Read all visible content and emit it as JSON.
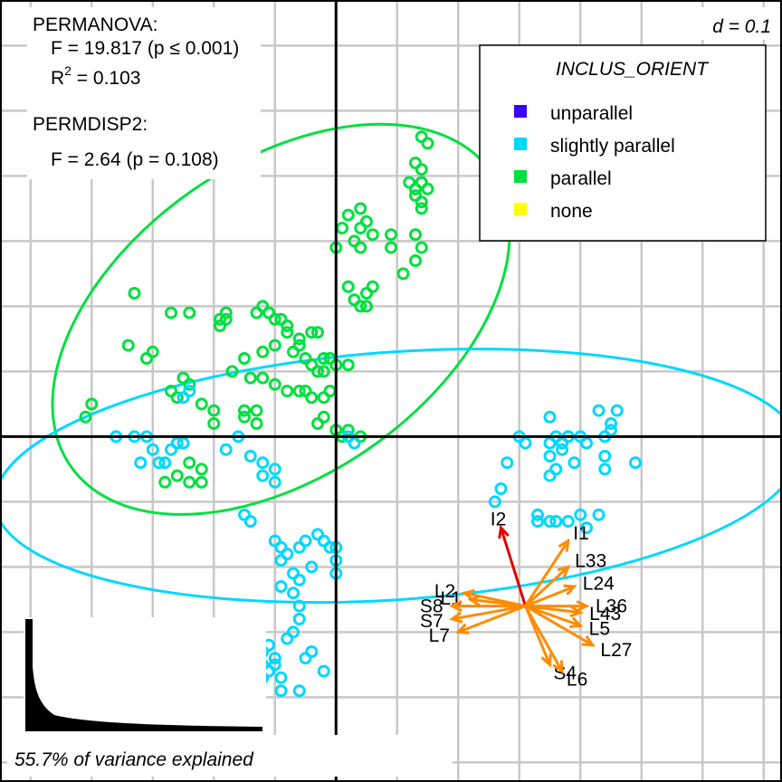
{
  "chart_data": {
    "type": "scatter",
    "title": "",
    "scale_label": "d = 0.1",
    "xlim": [
      -0.55,
      0.73
    ],
    "ylim": [
      -0.53,
      0.67
    ],
    "grid": true,
    "legend": {
      "title": "INCLUS_ORIENT",
      "placement": "top-right",
      "entries": [
        {
          "label": "unparallel",
          "color": "#3B00FF"
        },
        {
          "label": "slightly parallel",
          "color": "#00D8FF"
        },
        {
          "label": "parallel",
          "color": "#00E040"
        },
        {
          "label": "none",
          "color": "#FFFF00"
        }
      ]
    },
    "stats": {
      "permanova_title": "PERMANOVA:",
      "permanova_f": "F = 19.817 (p ≤ 0.001)",
      "permanova_r2_prefix": "R",
      "permanova_r2_sup": "2",
      "permanova_r2_suffix": " = 0.103",
      "permdisp_title": "PERMDISP2:",
      "permdisp_f": "F = 2.64 (p = 0.108)"
    },
    "variance_label": "55.7% of variance explained",
    "series": [
      {
        "name": "parallel",
        "color": "#00E040",
        "points": [
          [
            0.14,
            0.46
          ],
          [
            0.15,
            0.45
          ],
          [
            0.13,
            0.42
          ],
          [
            0.14,
            0.41
          ],
          [
            0.13,
            0.38
          ],
          [
            0.14,
            0.39
          ],
          [
            0.12,
            0.39
          ],
          [
            0.13,
            0.38
          ],
          [
            0.14,
            0.39
          ],
          [
            0.15,
            0.38
          ],
          [
            0.14,
            0.36
          ],
          [
            0.13,
            0.37
          ],
          [
            0.14,
            0.35
          ],
          [
            0.04,
            0.35
          ],
          [
            0.02,
            0.34
          ],
          [
            0.05,
            0.33
          ],
          [
            0.04,
            0.32
          ],
          [
            0.01,
            0.32
          ],
          [
            0.06,
            0.31
          ],
          [
            0.03,
            0.3
          ],
          [
            0.09,
            0.31
          ],
          [
            0.13,
            0.31
          ],
          [
            0.14,
            0.29
          ],
          [
            0.0,
            0.29
          ],
          [
            0.04,
            0.29
          ],
          [
            0.09,
            0.29
          ],
          [
            0.13,
            0.27
          ],
          [
            0.11,
            0.25
          ],
          [
            0.06,
            0.23
          ],
          [
            0.02,
            0.23
          ],
          [
            0.05,
            0.22
          ],
          [
            0.03,
            0.21
          ],
          [
            0.04,
            0.2
          ],
          [
            0.05,
            0.2
          ],
          [
            -0.33,
            0.22
          ],
          [
            -0.27,
            0.19
          ],
          [
            -0.24,
            0.19
          ],
          [
            -0.19,
            0.18
          ],
          [
            -0.18,
            0.19
          ],
          [
            -0.18,
            0.18
          ],
          [
            -0.19,
            0.17
          ],
          [
            -0.12,
            0.2
          ],
          [
            -0.13,
            0.19
          ],
          [
            -0.11,
            0.19
          ],
          [
            -0.1,
            0.18
          ],
          [
            -0.09,
            0.18
          ],
          [
            -0.08,
            0.17
          ],
          [
            -0.08,
            0.16
          ],
          [
            -0.06,
            0.15
          ],
          [
            -0.04,
            0.16
          ],
          [
            -0.03,
            0.16
          ],
          [
            -0.06,
            0.14
          ],
          [
            -0.07,
            0.13
          ],
          [
            -0.05,
            0.12
          ],
          [
            -0.04,
            0.11
          ],
          [
            -0.02,
            0.12
          ],
          [
            -0.01,
            0.12
          ],
          [
            0.0,
            0.11
          ],
          [
            0.02,
            0.11
          ],
          [
            -0.03,
            0.1
          ],
          [
            -0.02,
            0.1
          ],
          [
            -0.1,
            0.14
          ],
          [
            -0.12,
            0.13
          ],
          [
            -0.15,
            0.12
          ],
          [
            -0.17,
            0.1
          ],
          [
            -0.14,
            0.09
          ],
          [
            -0.12,
            0.09
          ],
          [
            -0.1,
            0.08
          ],
          [
            -0.08,
            0.07
          ],
          [
            -0.06,
            0.07
          ],
          [
            -0.05,
            0.07
          ],
          [
            -0.04,
            0.06
          ],
          [
            -0.02,
            0.06
          ],
          [
            -0.01,
            0.07
          ],
          [
            -0.34,
            0.14
          ],
          [
            -0.3,
            0.13
          ],
          [
            -0.31,
            0.12
          ],
          [
            -0.25,
            0.09
          ],
          [
            -0.24,
            0.08
          ],
          [
            -0.27,
            0.07
          ],
          [
            -0.26,
            0.06
          ],
          [
            -0.22,
            0.05
          ],
          [
            -0.2,
            0.04
          ],
          [
            -0.2,
            0.02
          ],
          [
            -0.15,
            0.03
          ],
          [
            -0.13,
            0.02
          ],
          [
            -0.13,
            0.04
          ],
          [
            -0.15,
            0.04
          ],
          [
            -0.4,
            0.05
          ],
          [
            -0.41,
            0.03
          ],
          [
            -0.02,
            0.03
          ],
          [
            -0.03,
            0.02
          ],
          [
            0.0,
            0.01
          ],
          [
            0.01,
            0.0
          ],
          [
            0.02,
            0.01
          ],
          [
            0.04,
            0.0
          ],
          [
            -0.24,
            -0.04
          ],
          [
            -0.22,
            -0.05
          ],
          [
            -0.26,
            -0.06
          ],
          [
            -0.24,
            -0.07
          ],
          [
            -0.22,
            -0.07
          ],
          [
            -0.28,
            -0.07
          ]
        ]
      },
      {
        "name": "slightly parallel",
        "color": "#00D8FF",
        "points": [
          [
            -0.24,
            0.07
          ],
          [
            -0.25,
            0.06
          ],
          [
            -0.36,
            0.0
          ],
          [
            -0.33,
            0.0
          ],
          [
            -0.31,
            0.0
          ],
          [
            -0.26,
            -0.01
          ],
          [
            -0.25,
            -0.01
          ],
          [
            -0.3,
            -0.02
          ],
          [
            -0.27,
            -0.02
          ],
          [
            -0.32,
            -0.04
          ],
          [
            -0.29,
            -0.04
          ],
          [
            -0.28,
            -0.04
          ],
          [
            -0.16,
            0.0
          ],
          [
            -0.18,
            -0.02
          ],
          [
            -0.14,
            -0.03
          ],
          [
            -0.12,
            -0.04
          ],
          [
            -0.1,
            -0.05
          ],
          [
            -0.12,
            -0.06
          ],
          [
            -0.1,
            -0.07
          ],
          [
            0.02,
            0.0
          ],
          [
            0.03,
            -0.01
          ],
          [
            -0.14,
            -0.13
          ],
          [
            -0.15,
            -0.12
          ],
          [
            -0.05,
            -0.16
          ],
          [
            -0.03,
            -0.15
          ],
          [
            -0.02,
            -0.16
          ],
          [
            -0.01,
            -0.17
          ],
          [
            0.0,
            -0.17
          ],
          [
            -0.1,
            -0.16
          ],
          [
            -0.09,
            -0.17
          ],
          [
            -0.08,
            -0.18
          ],
          [
            -0.06,
            -0.17
          ],
          [
            -0.09,
            -0.19
          ],
          [
            -0.07,
            -0.21
          ],
          [
            -0.06,
            -0.22
          ],
          [
            -0.04,
            -0.2
          ],
          [
            0.0,
            -0.19
          ],
          [
            0.0,
            -0.21
          ],
          [
            -0.09,
            -0.23
          ],
          [
            -0.07,
            -0.24
          ],
          [
            -0.06,
            -0.26
          ],
          [
            -0.06,
            -0.28
          ],
          [
            -0.07,
            -0.3
          ],
          [
            -0.08,
            -0.31
          ],
          [
            -0.11,
            -0.32
          ],
          [
            -0.12,
            -0.33
          ],
          [
            -0.1,
            -0.34
          ],
          [
            -0.1,
            -0.35
          ],
          [
            -0.11,
            -0.36
          ],
          [
            -0.12,
            -0.35
          ],
          [
            -0.12,
            -0.37
          ],
          [
            -0.09,
            -0.37
          ],
          [
            -0.09,
            -0.39
          ],
          [
            -0.06,
            -0.39
          ],
          [
            -0.05,
            -0.34
          ],
          [
            -0.04,
            -0.33
          ],
          [
            -0.02,
            -0.36
          ],
          [
            -0.14,
            -0.32
          ],
          [
            -0.15,
            -0.34
          ],
          [
            -0.14,
            -0.38
          ],
          [
            -0.13,
            -0.4
          ],
          [
            0.35,
            0.03
          ],
          [
            0.38,
            0.0
          ],
          [
            0.36,
            0.0
          ],
          [
            0.35,
            -0.01
          ],
          [
            0.35,
            -0.03
          ],
          [
            0.3,
            0.0
          ],
          [
            0.31,
            -0.01
          ],
          [
            0.28,
            -0.04
          ],
          [
            0.27,
            -0.08
          ],
          [
            0.26,
            -0.1
          ],
          [
            0.35,
            -0.06
          ],
          [
            0.33,
            -0.13
          ],
          [
            0.36,
            -0.13
          ],
          [
            0.36,
            -0.05
          ],
          [
            0.39,
            -0.04
          ],
          [
            0.35,
            -0.13
          ],
          [
            0.33,
            -0.12
          ],
          [
            0.38,
            -0.13
          ],
          [
            0.41,
            -0.14
          ],
          [
            0.43,
            -0.12
          ],
          [
            0.4,
            -0.12
          ],
          [
            0.37,
            -0.02
          ],
          [
            0.38,
            0.0
          ],
          [
            0.4,
            0.0
          ],
          [
            0.44,
            0.0
          ],
          [
            0.45,
            0.01
          ],
          [
            0.46,
            0.04
          ],
          [
            0.45,
            0.02
          ],
          [
            0.44,
            -0.05
          ],
          [
            0.44,
            -0.03
          ],
          [
            0.49,
            -0.04
          ],
          [
            0.37,
            -0.01
          ],
          [
            0.41,
            -0.01
          ],
          [
            0.43,
            0.04
          ]
        ]
      }
    ],
    "ellipses": [
      {
        "name": "parallel",
        "color": "#00E040",
        "cx": -0.09,
        "cy": 0.18,
        "rx": 0.42,
        "ry": 0.24,
        "angle_deg": 35
      },
      {
        "name": "slightly parallel",
        "color": "#00D8FF",
        "cx": 0.1,
        "cy": -0.06,
        "rx": 0.66,
        "ry": 0.19,
        "angle_deg": 4
      }
    ],
    "biplot_vectors": {
      "origin": [
        0.31,
        -0.26
      ],
      "arrows": [
        {
          "label": "I2",
          "color": "#E00000",
          "x": 0.27,
          "y": -0.14
        },
        {
          "label": "I1",
          "color": "#FF8C00",
          "x": 0.38,
          "y": -0.16
        },
        {
          "label": "L33",
          "color": "#FF8C00",
          "x": 0.38,
          "y": -0.2
        },
        {
          "label": "L24",
          "color": "#FF8C00",
          "x": 0.39,
          "y": -0.23
        },
        {
          "label": "L36",
          "color": "#FF8C00",
          "x": 0.41,
          "y": -0.26
        },
        {
          "label": "L43",
          "color": "#FF8C00",
          "x": 0.4,
          "y": -0.27
        },
        {
          "label": "L5",
          "color": "#FF8C00",
          "x": 0.4,
          "y": -0.29
        },
        {
          "label": "L27",
          "color": "#FF8C00",
          "x": 0.42,
          "y": -0.32
        },
        {
          "label": "S4",
          "color": "#FF8C00",
          "x": 0.35,
          "y": -0.35
        },
        {
          "label": "L6",
          "color": "#FF8C00",
          "x": 0.37,
          "y": -0.36
        },
        {
          "label": "L2",
          "color": "#FF8C00",
          "x": 0.21,
          "y": -0.24
        },
        {
          "label": "L1",
          "color": "#FF8C00",
          "x": 0.22,
          "y": -0.25
        },
        {
          "label": "S8",
          "color": "#FF8C00",
          "x": 0.19,
          "y": -0.26
        },
        {
          "label": "S7",
          "color": "#FF8C00",
          "x": 0.19,
          "y": -0.28
        },
        {
          "label": "L7",
          "color": "#FF8C00",
          "x": 0.2,
          "y": -0.3
        }
      ]
    }
  }
}
